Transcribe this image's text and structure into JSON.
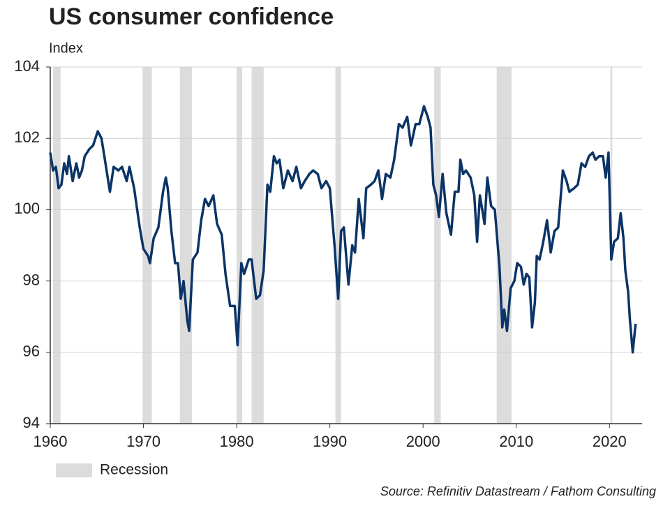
{
  "chart_data": {
    "type": "line",
    "title": "US consumer confidence",
    "subtitle": "Index",
    "source": "Source: Refinitiv Datastream / Fathom Consulting",
    "legend_label": "Recession",
    "recession_color": "#dcdcdc",
    "recessions": [
      [
        1960.3,
        1961.1
      ],
      [
        1969.9,
        1970.9
      ],
      [
        1973.9,
        1975.2
      ],
      [
        1980.0,
        1980.6
      ],
      [
        1981.6,
        1982.9
      ],
      [
        1990.6,
        1991.2
      ],
      [
        2001.2,
        2001.9
      ],
      [
        2007.9,
        2009.5
      ],
      [
        2020.1,
        2020.3
      ]
    ],
    "x": [
      1960.0,
      1960.3,
      1960.6,
      1960.9,
      1961.2,
      1961.5,
      1961.8,
      1962.0,
      1962.4,
      1962.8,
      1963.1,
      1963.4,
      1963.7,
      1964.2,
      1964.6,
      1965.1,
      1965.5,
      1965.8,
      1966.4,
      1966.8,
      1967.3,
      1967.7,
      1968.2,
      1968.5,
      1969.0,
      1969.6,
      1970.0,
      1970.5,
      1970.7,
      1971.1,
      1971.6,
      1972.1,
      1972.4,
      1972.6,
      1973.0,
      1973.4,
      1973.7,
      1974.0,
      1974.3,
      1974.7,
      1974.9,
      1975.3,
      1975.8,
      1976.2,
      1976.6,
      1977.0,
      1977.5,
      1977.9,
      1978.4,
      1978.8,
      1979.3,
      1979.8,
      1980.1,
      1980.5,
      1980.8,
      1981.3,
      1981.6,
      1982.1,
      1982.5,
      1982.9,
      1983.3,
      1983.6,
      1984.0,
      1984.3,
      1984.6,
      1985.0,
      1985.5,
      1986.0,
      1986.4,
      1986.9,
      1987.3,
      1987.8,
      1988.2,
      1988.7,
      1989.1,
      1989.6,
      1990.0,
      1990.5,
      1990.9,
      1991.2,
      1991.5,
      1992.0,
      1992.4,
      1992.7,
      1993.1,
      1993.6,
      1993.9,
      1994.4,
      1994.8,
      1995.2,
      1995.6,
      1996.0,
      1996.5,
      1996.9,
      1997.4,
      1997.8,
      1998.3,
      1998.7,
      1999.2,
      1999.6,
      2000.1,
      2000.5,
      2000.8,
      2001.1,
      2001.4,
      2001.7,
      2002.1,
      2002.5,
      2003.0,
      2003.4,
      2003.8,
      2004.0,
      2004.3,
      2004.6,
      2005.1,
      2005.5,
      2005.8,
      2006.1,
      2006.6,
      2006.9,
      2007.3,
      2007.7,
      2008.2,
      2008.5,
      2008.7,
      2009.0,
      2009.4,
      2009.8,
      2010.1,
      2010.5,
      2010.8,
      2011.1,
      2011.4,
      2011.7,
      2012.0,
      2012.2,
      2012.5,
      2012.9,
      2013.3,
      2013.7,
      2014.1,
      2014.5,
      2015.0,
      2015.4,
      2015.7,
      2016.2,
      2016.6,
      2017.0,
      2017.4,
      2017.8,
      2018.2,
      2018.5,
      2018.9,
      2019.3,
      2019.6,
      2019.9,
      2020.2,
      2020.5,
      2020.9,
      2021.2,
      2021.5,
      2021.7,
      2022.0,
      2022.2,
      2022.5,
      2022.8
    ],
    "series": [
      {
        "name": "US consumer confidence",
        "color": "#0b3467",
        "values": [
          101.6,
          101.1,
          101.2,
          100.6,
          100.7,
          101.3,
          101.0,
          101.5,
          100.8,
          101.3,
          100.9,
          101.1,
          101.5,
          101.7,
          101.8,
          102.2,
          102.0,
          101.5,
          100.5,
          101.2,
          101.1,
          101.2,
          100.8,
          101.2,
          100.6,
          99.5,
          98.9,
          98.7,
          98.5,
          99.2,
          99.5,
          100.5,
          100.9,
          100.6,
          99.4,
          98.5,
          98.5,
          97.5,
          98.0,
          96.9,
          96.6,
          98.6,
          98.8,
          99.7,
          100.3,
          100.1,
          100.4,
          99.6,
          99.3,
          98.2,
          97.3,
          97.3,
          96.2,
          98.5,
          98.2,
          98.6,
          98.6,
          97.5,
          97.6,
          98.3,
          100.7,
          100.5,
          101.5,
          101.3,
          101.4,
          100.6,
          101.1,
          100.8,
          101.2,
          100.6,
          100.8,
          101.0,
          101.1,
          101.0,
          100.6,
          100.8,
          100.6,
          99.0,
          97.5,
          99.4,
          99.5,
          97.9,
          99.0,
          98.8,
          100.3,
          99.2,
          100.6,
          100.7,
          100.8,
          101.1,
          100.3,
          101.0,
          100.9,
          101.4,
          102.4,
          102.3,
          102.6,
          101.8,
          102.4,
          102.4,
          102.9,
          102.6,
          102.3,
          100.7,
          100.4,
          99.8,
          101.0,
          99.9,
          99.3,
          100.5,
          100.5,
          101.4,
          101.0,
          101.1,
          100.9,
          100.4,
          99.1,
          100.4,
          99.6,
          100.9,
          100.1,
          100.0,
          98.4,
          96.7,
          97.2,
          96.6,
          97.8,
          98.0,
          98.5,
          98.4,
          97.9,
          98.2,
          98.1,
          96.7,
          97.4,
          98.7,
          98.6,
          99.1,
          99.7,
          98.8,
          99.4,
          99.5,
          101.1,
          100.8,
          100.5,
          100.6,
          100.7,
          101.3,
          101.2,
          101.5,
          101.6,
          101.4,
          101.5,
          101.5,
          100.9,
          101.6,
          98.6,
          99.1,
          99.2,
          99.9,
          99.2,
          98.3,
          97.7,
          96.9,
          96.0,
          96.8
        ]
      }
    ],
    "xlim": [
      1960,
      2023.5
    ],
    "xticks": [
      1960,
      1970,
      1980,
      1990,
      2000,
      2010,
      2020
    ],
    "ylim": [
      94,
      104
    ],
    "yticks": [
      94,
      96,
      98,
      100,
      102,
      104
    ],
    "grid": true
  }
}
